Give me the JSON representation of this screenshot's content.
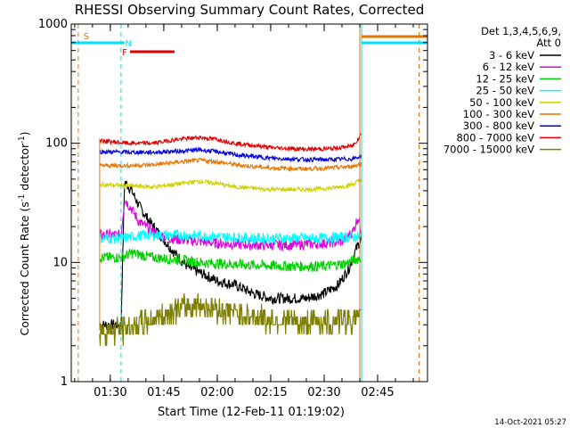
{
  "chart_data": {
    "type": "line",
    "title": "RHESSI Observing Summary Count Rates, Corrected",
    "xlabel": "Start Time (12-Feb-11 01:19:02)",
    "ylabel_main": "Corrected Count Rate (s",
    "ylabel_sup1": "-1",
    "ylabel_mid": " detector",
    "ylabel_sup2": "-1",
    "ylabel_end": ")",
    "yscale": "log",
    "ylim": [
      1,
      1000
    ],
    "xlim": [
      "01:19:02",
      "02:59:00"
    ],
    "x_ticks": [
      "01:30",
      "01:45",
      "02:00",
      "02:15",
      "02:30",
      "02:45"
    ],
    "y_ticks": [
      "1",
      "10",
      "100",
      "1000"
    ],
    "footer_date": "14-Oct-2021 05:27",
    "legend": {
      "header1": "Det 1,3,4,5,6,9,",
      "header2": "Att 0",
      "placement": "right, outside plot"
    },
    "flags": [
      {
        "label": "S",
        "color": "#e87400"
      },
      {
        "label": "N",
        "color": "#00e0ff"
      },
      {
        "label": "F",
        "color": "#e00000"
      }
    ],
    "flag_times": {
      "S_start": "01:19:02",
      "S_end": "01:20:00",
      "N_bar_start": "01:19:02",
      "N_bar_end": "01:34:00",
      "N_label_time": "01:35:00",
      "F_start": "01:35:30",
      "F_end": "01:48:00",
      "N2_start": "02:40:30",
      "N2_end": "02:59:00",
      "S2_start": "02:40:30",
      "S2_end": "02:59:00"
    },
    "markers": [
      {
        "time": "01:21:00",
        "color": "#e87400",
        "style": "dashed"
      },
      {
        "time": "01:33:00",
        "color": "#00e0ff",
        "style": "dashed"
      },
      {
        "time": "02:40:00",
        "color": "#e87400",
        "style": "solid"
      },
      {
        "time": "02:40:30",
        "color": "#00e0ff",
        "style": "solid"
      },
      {
        "time": "02:56:40",
        "color": "#00e0ff",
        "style": "dashed"
      },
      {
        "time": "02:56:40",
        "color": "#e87400",
        "style": "dashed"
      }
    ],
    "data_start": "01:27:00",
    "data_end": "02:40:30",
    "series": [
      {
        "name": "3 - 6 keV",
        "color": "#000000",
        "points": [
          [
            "01:27:00",
            3
          ],
          [
            "01:33:00",
            3
          ],
          [
            "01:34:00",
            48
          ],
          [
            "01:36:00",
            40
          ],
          [
            "01:38:00",
            30
          ],
          [
            "01:41:00",
            22
          ],
          [
            "01:44:00",
            17
          ],
          [
            "01:48:00",
            12
          ],
          [
            "01:52:00",
            9
          ],
          [
            "01:56:00",
            8
          ],
          [
            "02:00:00",
            7
          ],
          [
            "02:05:00",
            6.5
          ],
          [
            "02:10:00",
            5.5
          ],
          [
            "02:15:00",
            5
          ],
          [
            "02:20:00",
            5
          ],
          [
            "02:25:00",
            5
          ],
          [
            "02:30:00",
            5.5
          ],
          [
            "02:34:00",
            6.5
          ],
          [
            "02:37:00",
            9
          ],
          [
            "02:39:00",
            13
          ],
          [
            "02:40:30",
            16
          ]
        ]
      },
      {
        "name": "6 - 12 keV",
        "color": "#e000e0",
        "points": [
          [
            "01:27:00",
            17
          ],
          [
            "01:33:00",
            17
          ],
          [
            "01:34:00",
            34
          ],
          [
            "01:36:00",
            28
          ],
          [
            "01:38:00",
            22
          ],
          [
            "01:42:00",
            18
          ],
          [
            "01:46:00",
            16
          ],
          [
            "01:50:00",
            15.5
          ],
          [
            "01:55:00",
            15
          ],
          [
            "02:00:00",
            14.5
          ],
          [
            "02:10:00",
            14
          ],
          [
            "02:20:00",
            14
          ],
          [
            "02:30:00",
            14.5
          ],
          [
            "02:35:00",
            15
          ],
          [
            "02:38:00",
            18
          ],
          [
            "02:39:30",
            24
          ],
          [
            "02:40:30",
            18
          ]
        ]
      },
      {
        "name": "12 - 25 keV",
        "color": "#00d000",
        "points": [
          [
            "01:27:00",
            11
          ],
          [
            "01:33:00",
            11
          ],
          [
            "01:36:00",
            12
          ],
          [
            "01:42:00",
            11
          ],
          [
            "01:50:00",
            10.5
          ],
          [
            "01:55:00",
            10
          ],
          [
            "02:00:00",
            9.8
          ],
          [
            "02:10:00",
            9.5
          ],
          [
            "02:20:00",
            9.3
          ],
          [
            "02:30:00",
            9.3
          ],
          [
            "02:36:00",
            9.8
          ],
          [
            "02:40:30",
            11
          ]
        ]
      },
      {
        "name": "25 - 50 keV",
        "color": "#00ffff",
        "points": [
          [
            "01:27:00",
            16
          ],
          [
            "01:33:00",
            16
          ],
          [
            "01:40:00",
            17
          ],
          [
            "01:50:00",
            17
          ],
          [
            "02:00:00",
            16.5
          ],
          [
            "02:10:00",
            16
          ],
          [
            "02:20:00",
            16
          ],
          [
            "02:30:00",
            16
          ],
          [
            "02:40:30",
            16.5
          ]
        ]
      },
      {
        "name": "50 - 100 keV",
        "color": "#d0d000",
        "points": [
          [
            "01:27:00",
            45
          ],
          [
            "01:35:00",
            44
          ],
          [
            "01:42:00",
            43
          ],
          [
            "01:50:00",
            46
          ],
          [
            "01:55:00",
            48
          ],
          [
            "02:00:00",
            46
          ],
          [
            "02:05:00",
            43
          ],
          [
            "02:15:00",
            41
          ],
          [
            "02:25:00",
            41
          ],
          [
            "02:32:00",
            42
          ],
          [
            "02:38:00",
            45
          ],
          [
            "02:40:30",
            50
          ]
        ]
      },
      {
        "name": "100 - 300 keV",
        "color": "#e87400",
        "points": [
          [
            "01:27:00",
            65
          ],
          [
            "01:35:00",
            65
          ],
          [
            "01:42:00",
            66
          ],
          [
            "01:50:00",
            70
          ],
          [
            "01:55:00",
            72
          ],
          [
            "02:00:00",
            70
          ],
          [
            "02:05:00",
            66
          ],
          [
            "02:15:00",
            62
          ],
          [
            "02:25:00",
            61
          ],
          [
            "02:32:00",
            62
          ],
          [
            "02:38:00",
            64
          ],
          [
            "02:40:30",
            68
          ]
        ]
      },
      {
        "name": "300 - 800 keV",
        "color": "#0000e0",
        "points": [
          [
            "01:27:00",
            85
          ],
          [
            "01:35:00",
            84
          ],
          [
            "01:42:00",
            84
          ],
          [
            "01:50:00",
            86
          ],
          [
            "01:55:00",
            88
          ],
          [
            "02:00:00",
            85
          ],
          [
            "02:05:00",
            80
          ],
          [
            "02:15:00",
            75
          ],
          [
            "02:25:00",
            73
          ],
          [
            "02:32:00",
            73
          ],
          [
            "02:38:00",
            74
          ],
          [
            "02:40:30",
            78
          ]
        ]
      },
      {
        "name": "800 - 7000 keV",
        "color": "#e00000",
        "points": [
          [
            "01:27:00",
            105
          ],
          [
            "01:35:00",
            100
          ],
          [
            "01:42:00",
            100
          ],
          [
            "01:48:00",
            107
          ],
          [
            "01:55:00",
            112
          ],
          [
            "02:00:00",
            108
          ],
          [
            "02:05:00",
            100
          ],
          [
            "02:15:00",
            92
          ],
          [
            "02:25:00",
            89
          ],
          [
            "02:32:00",
            90
          ],
          [
            "02:38:00",
            95
          ],
          [
            "02:40:30",
            120
          ]
        ]
      },
      {
        "name": "7000 - 15000 keV",
        "color": "#808000",
        "points": [
          [
            "01:27:00",
            2.7
          ],
          [
            "01:33:00",
            2.7
          ],
          [
            "01:38:00",
            3
          ],
          [
            "01:44:00",
            3.5
          ],
          [
            "01:48:00",
            4
          ],
          [
            "01:55:00",
            4.5
          ],
          [
            "02:00:00",
            4
          ],
          [
            "02:05:00",
            3.8
          ],
          [
            "02:10:00",
            3.5
          ],
          [
            "02:15:00",
            3.3
          ],
          [
            "02:20:00",
            3.2
          ],
          [
            "02:25:00",
            3.1
          ],
          [
            "02:30:00",
            3.2
          ],
          [
            "02:35:00",
            3.3
          ],
          [
            "02:40:30",
            3.4
          ]
        ]
      }
    ]
  }
}
